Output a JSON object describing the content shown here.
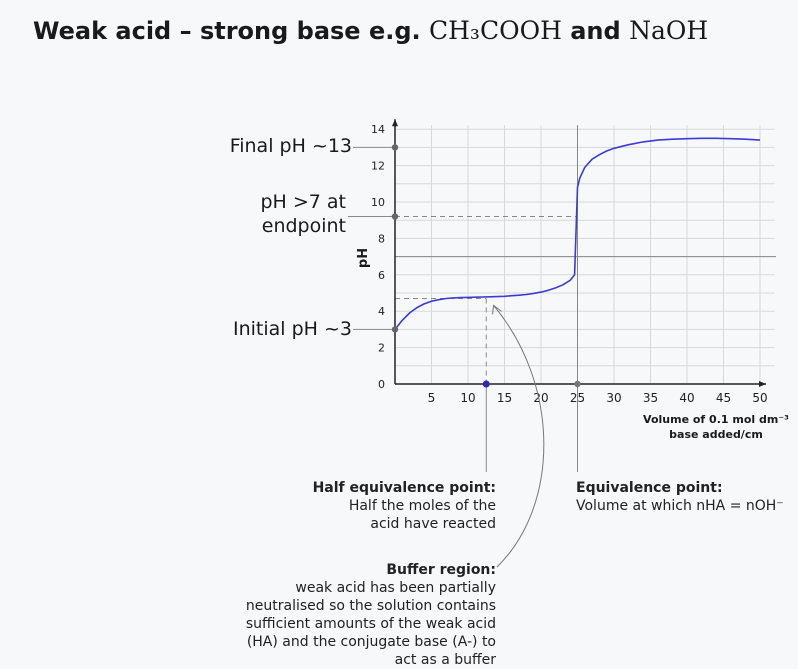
{
  "title": {
    "text": "Weak acid – strong base e.g.",
    "formula1": "CH₃COOH",
    "joiner": "and",
    "formula2": "NaOH"
  },
  "side_labels": {
    "final": "Final pH ~13",
    "endpoint_line1": "pH >7 at",
    "endpoint_line2": "endpoint",
    "initial": "Initial pH ~3"
  },
  "annotations": {
    "half_equivalence": {
      "heading": "Half equivalence point:",
      "lines": [
        "Half the moles of the",
        "acid have reacted"
      ]
    },
    "equivalence": {
      "heading": "Equivalence point:",
      "lines": [
        "Volume at which nHA = nOH⁻"
      ]
    },
    "buffer": {
      "heading": "Buffer region:",
      "lines": [
        "weak acid has been partially",
        "neutralised so the solution contains",
        "sufficient amounts of the weak acid",
        "(HA) and the conjugate base (A-) to",
        "act as a buffer"
      ]
    }
  },
  "chart_data": {
    "type": "line",
    "xlabel_line1": "Volume of 0.1 mol dm⁻³",
    "xlabel_line2": "base added/cm",
    "ylabel": "pH",
    "xlim": [
      0,
      52
    ],
    "ylim": [
      0,
      14
    ],
    "x_ticks": [
      5,
      10,
      15,
      20,
      25,
      30,
      35,
      40,
      45,
      50
    ],
    "y_ticks": [
      0,
      2,
      4,
      6,
      8,
      10,
      12,
      14
    ],
    "grid": true,
    "colors": {
      "curve": "#3b3bd6",
      "marker": "#2a2ab8",
      "grid": "#d8d8d8",
      "axis": "#222222",
      "guide": "#888888"
    },
    "series": [
      {
        "x": [
          0,
          1,
          2,
          3,
          4,
          5,
          6,
          7,
          8,
          9,
          10,
          11,
          12,
          13,
          14,
          15,
          16,
          17,
          18,
          19,
          20,
          21,
          22,
          23,
          24,
          24.6,
          25,
          25.3,
          26,
          27,
          28,
          29,
          30,
          32,
          34,
          36,
          38,
          40,
          42,
          44,
          46,
          48,
          50
        ],
        "y": [
          3.0,
          3.5,
          3.9,
          4.2,
          4.4,
          4.55,
          4.63,
          4.7,
          4.73,
          4.75,
          4.76,
          4.77,
          4.78,
          4.79,
          4.8,
          4.82,
          4.85,
          4.88,
          4.92,
          4.98,
          5.05,
          5.15,
          5.28,
          5.45,
          5.7,
          6.0,
          10.8,
          11.3,
          11.9,
          12.35,
          12.6,
          12.8,
          12.95,
          13.15,
          13.3,
          13.4,
          13.45,
          13.48,
          13.5,
          13.5,
          13.48,
          13.45,
          13.4
        ]
      }
    ],
    "reference_lines": {
      "initial_ph": 3,
      "endpoint_ph": 9.2,
      "half_equivalence_ph": 4.7,
      "final_ph": 13,
      "neutral_ph": 7,
      "equivalence_volume": 25,
      "half_equivalence_volume": 12.5
    }
  }
}
